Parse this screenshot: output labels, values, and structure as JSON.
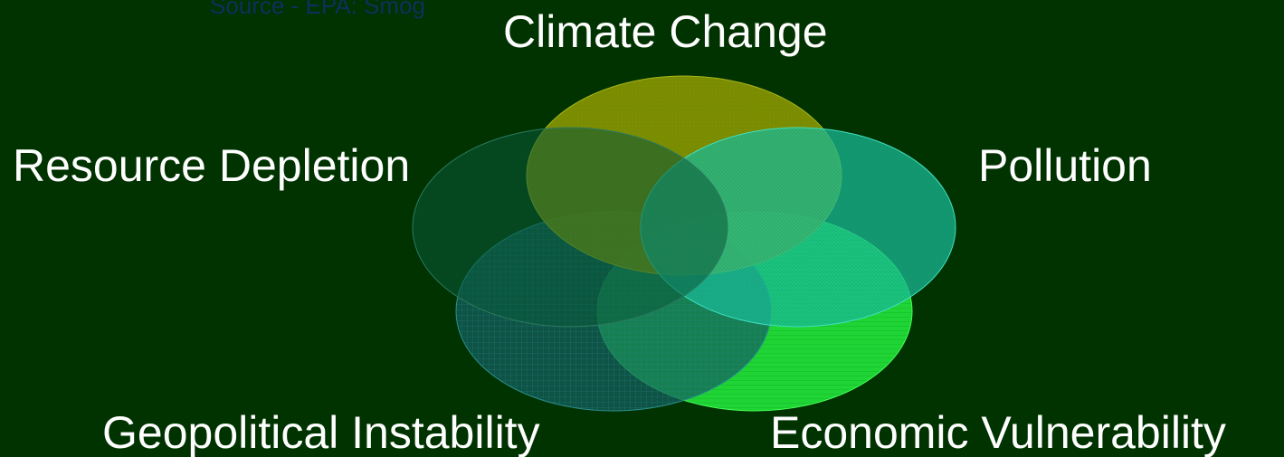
{
  "source_note": "Source - EPA: Smog",
  "venn": {
    "sets": [
      {
        "id": "climate",
        "label": "Climate Change",
        "color": "#8c9a00"
      },
      {
        "id": "resource",
        "label": "Resource Depletion",
        "color": "#0a5a3a"
      },
      {
        "id": "pollution",
        "label": "Pollution",
        "color": "#1abf9a"
      },
      {
        "id": "geopolitical",
        "label": "Geopolitical Instability",
        "color": "#136060"
      },
      {
        "id": "economic",
        "label": "Economic Vulnerability",
        "color": "#22e23a"
      }
    ]
  },
  "colors": {
    "background": "#003300",
    "label_text": "#ffffff",
    "source_text": "#0f2f5f"
  }
}
